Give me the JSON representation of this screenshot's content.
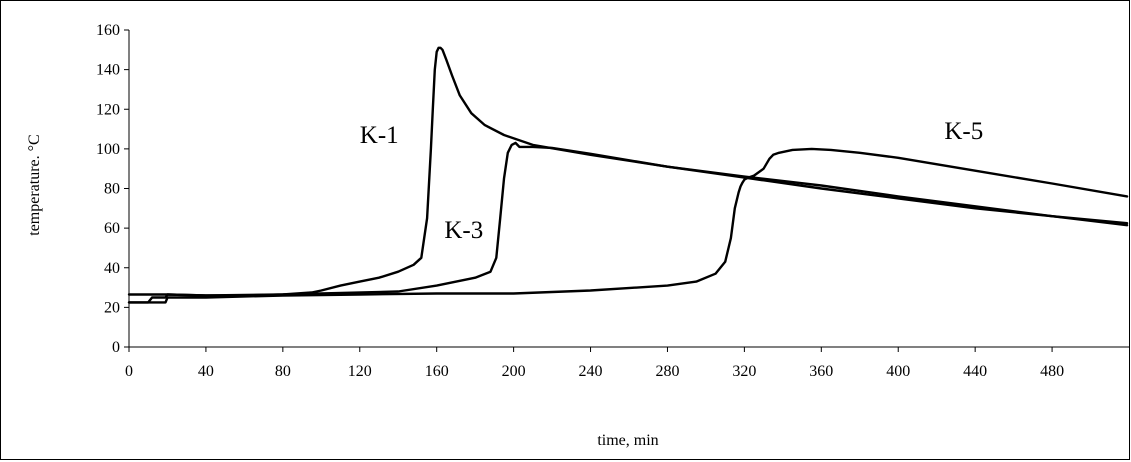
{
  "chart_data": {
    "type": "line",
    "title": "",
    "xlabel": "time, min",
    "ylabel": "temperature. °C",
    "xlim": [
      0,
      520
    ],
    "ylim": [
      0,
      160
    ],
    "xticks": [
      0,
      40,
      80,
      120,
      160,
      200,
      240,
      280,
      320,
      360,
      400,
      440,
      480
    ],
    "yticks": [
      0,
      20,
      40,
      60,
      80,
      100,
      120,
      140,
      160
    ],
    "grid": false,
    "legend": "none",
    "series": [
      {
        "name": "K-1",
        "label_pos": [
          120,
          103
        ],
        "x": [
          0,
          20,
          40,
          60,
          80,
          95,
          100,
          110,
          120,
          130,
          140,
          148,
          152,
          155,
          157,
          158,
          159,
          160,
          161,
          162,
          163,
          165,
          168,
          172,
          178,
          185,
          195,
          210,
          240,
          280,
          320,
          360,
          400,
          440,
          480,
          519
        ],
        "y": [
          26.5,
          26.5,
          26.0,
          26.0,
          26.5,
          27.5,
          28.5,
          31,
          33,
          35,
          38,
          41.5,
          45,
          65,
          100,
          120,
          140,
          149,
          151,
          151,
          150,
          145,
          137,
          127,
          118,
          112,
          107,
          102,
          97,
          91,
          86,
          81.5,
          76,
          71,
          66,
          61.5
        ]
      },
      {
        "name": "K-3",
        "label_pos": [
          164,
          55
        ],
        "x": [
          0,
          10,
          12,
          19,
          20,
          40,
          80,
          100,
          140,
          160,
          180,
          188,
          191,
          193,
          195,
          197,
          199,
          201,
          203,
          210,
          220,
          240,
          280,
          320,
          360,
          400,
          440,
          480,
          519
        ],
        "y": [
          22.5,
          22.5,
          25,
          25,
          26.5,
          26,
          26.5,
          27,
          28,
          31,
          35,
          38,
          45,
          65,
          85,
          98,
          102,
          103,
          101,
          101,
          100.5,
          97.5,
          91,
          85.5,
          80,
          75,
          70,
          66,
          62.5
        ]
      },
      {
        "name": "K-5",
        "label_pos": [
          424,
          105
        ],
        "x": [
          0,
          19,
          20,
          40,
          80,
          120,
          160,
          200,
          240,
          280,
          295,
          305,
          310,
          313,
          315,
          317,
          318,
          319,
          320,
          322,
          325,
          330,
          333,
          335,
          338,
          345,
          355,
          365,
          380,
          400,
          440,
          480,
          519
        ],
        "y": [
          22.5,
          22.5,
          25,
          25,
          26,
          26.5,
          27,
          27,
          28.5,
          31,
          33,
          37,
          43,
          55,
          70,
          78,
          81,
          83,
          84.5,
          85.5,
          86.5,
          90,
          95,
          97,
          98,
          99.5,
          100,
          99.5,
          98,
          95.5,
          89,
          82.5,
          76
        ]
      }
    ]
  }
}
